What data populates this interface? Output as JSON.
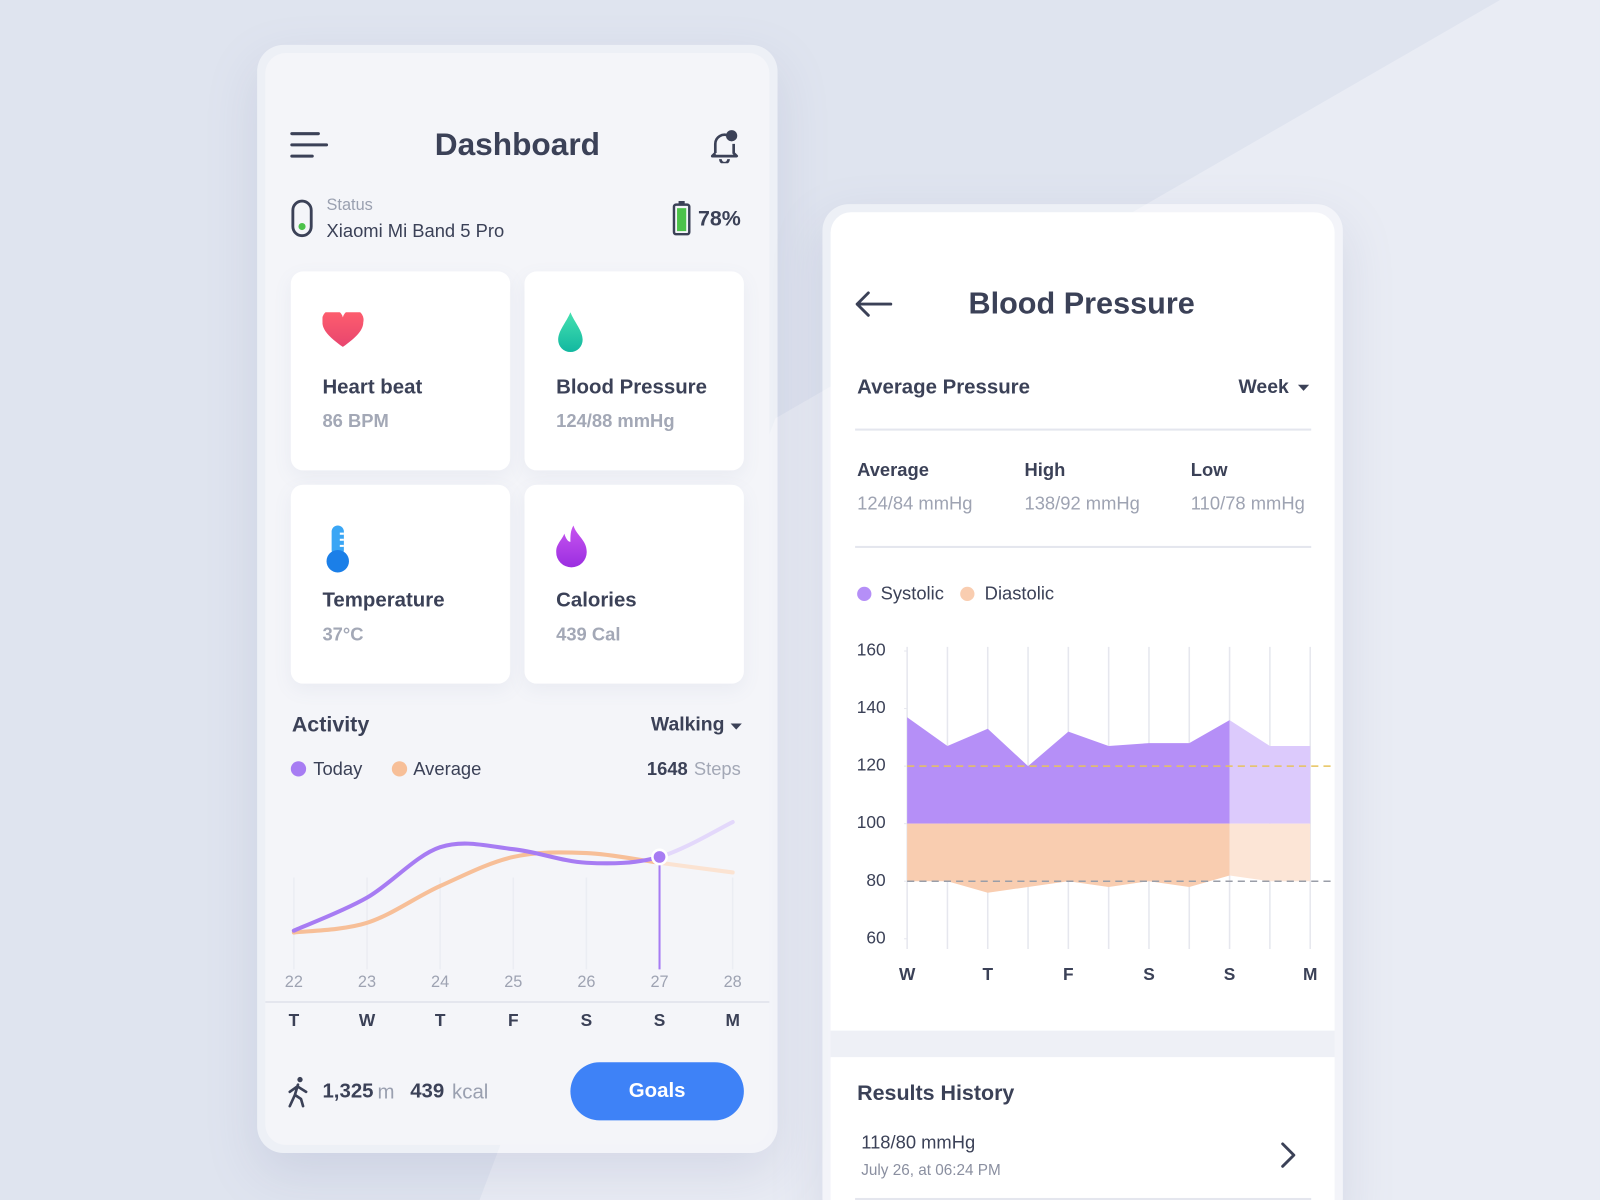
{
  "dashboard": {
    "title": "Dashboard",
    "status_label": "Status",
    "device": "Xiaomi Mi Band 5 Pro",
    "battery": "78%",
    "cards": [
      {
        "title": "Heart beat",
        "value": "86 BPM"
      },
      {
        "title": "Blood Pressure",
        "value": "124/88 mmHg"
      },
      {
        "title": "Temperature",
        "value": "37°C"
      },
      {
        "title": "Calories",
        "value": "439 Cal"
      }
    ],
    "activity": {
      "title": "Activity",
      "filter": "Walking",
      "steps": "1648",
      "steps_unit": "Steps",
      "chart_data": {
        "type": "line",
        "categories": [
          "22",
          "23",
          "24",
          "25",
          "26",
          "27",
          "28"
        ],
        "weekdays": [
          "T",
          "W",
          "T",
          "F",
          "S",
          "S",
          "M"
        ],
        "ylim": [
          0,
          100
        ],
        "highlight_index": 5,
        "series": [
          {
            "name": "Today",
            "color": "#a77cf3",
            "future_color": "#e3d8fb",
            "values": [
              20,
              37,
              63,
              62,
              55,
              58,
              76
            ]
          },
          {
            "name": "Average",
            "color": "#f7bf98",
            "future_color": "#fbe3d2",
            "values": [
              19,
              24,
              43,
              58,
              60,
              55,
              50
            ]
          }
        ]
      }
    },
    "footer": {
      "distance": "1,325",
      "distance_unit": "m",
      "energy": "439",
      "energy_unit": "kcal",
      "button": "Goals"
    }
  },
  "blood_pressure": {
    "title": "Blood Pressure",
    "section": "Average Pressure",
    "period": "Week",
    "stats": [
      {
        "label": "Average",
        "value": "124/84 mmHg"
      },
      {
        "label": "High",
        "value": "138/92 mmHg"
      },
      {
        "label": "Low",
        "value": "110/78 mmHg"
      }
    ],
    "chart_data": {
      "type": "area",
      "categories": [
        "W",
        null,
        "T",
        null,
        "F",
        null,
        "S",
        null,
        "S",
        null,
        "M"
      ],
      "ylim": [
        60,
        160
      ],
      "yticks": [
        60,
        80,
        100,
        120,
        140,
        160
      ],
      "base": 100,
      "reference_lines": [
        120,
        80
      ],
      "future_from_index": 8,
      "series": [
        {
          "name": "Systolic",
          "color": "#b58ff7",
          "future_color": "#dccafc",
          "values": [
            137,
            127,
            133,
            120,
            132,
            127,
            128,
            128,
            136,
            127,
            127
          ]
        },
        {
          "name": "Diastolic",
          "color": "#f9cdb0",
          "future_color": "#fce5d6",
          "values": [
            80,
            80,
            76,
            78,
            80,
            78,
            80,
            78,
            82,
            80,
            80
          ]
        }
      ]
    },
    "history": {
      "title": "Results History",
      "items": [
        {
          "value": "118/80 mmHg",
          "time": "July 26, at 06:24 PM"
        }
      ]
    }
  }
}
